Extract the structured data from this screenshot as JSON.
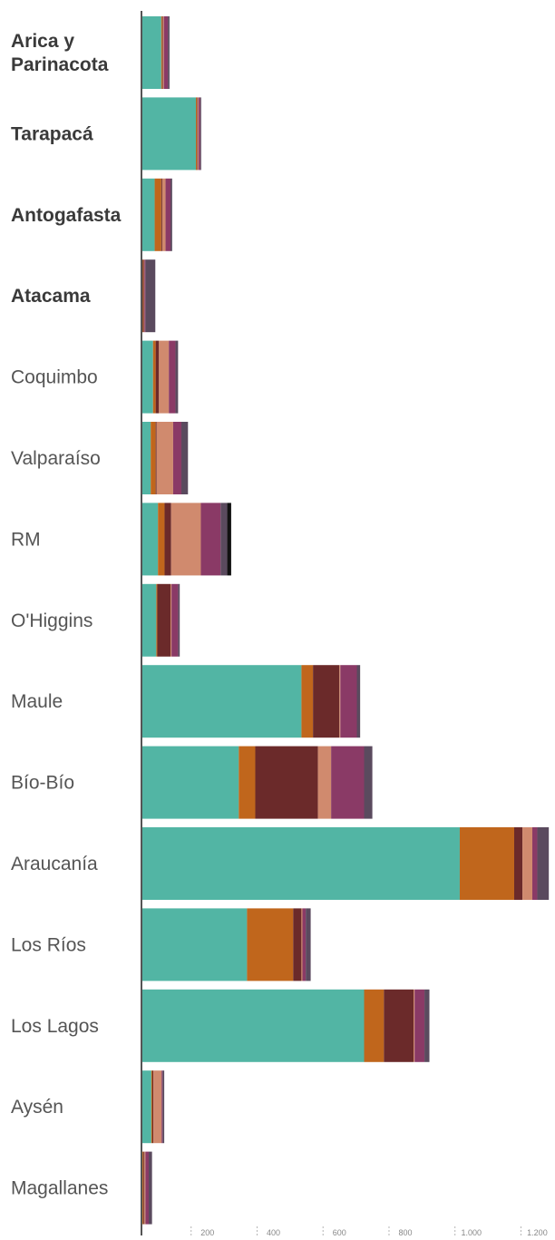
{
  "chart_data": {
    "type": "bar",
    "orientation": "horizontal",
    "stacked": true,
    "categories": [
      {
        "label": "Arica y\nParinacota",
        "bold": true
      },
      {
        "label": "Tarapacá",
        "bold": true
      },
      {
        "label": "Antogafasta",
        "bold": true
      },
      {
        "label": "Atacama",
        "bold": true
      },
      {
        "label": "Coquimbo",
        "bold": false
      },
      {
        "label": "Valparaíso",
        "bold": false
      },
      {
        "label": "RM",
        "bold": false
      },
      {
        "label": "O'Higgins",
        "bold": false
      },
      {
        "label": "Maule",
        "bold": false
      },
      {
        "label": "Bío-Bío",
        "bold": false
      },
      {
        "label": "Araucanía",
        "bold": false
      },
      {
        "label": "Los Ríos",
        "bold": false
      },
      {
        "label": "Los Lagos",
        "bold": false
      },
      {
        "label": "Aysén",
        "bold": false
      },
      {
        "label": "Magallanes",
        "bold": false
      }
    ],
    "series": [
      {
        "color": "#52b5a4",
        "values": [
          60,
          165,
          40,
          2,
          35,
          28,
          50,
          45,
          485,
          295,
          965,
          320,
          675,
          30,
          3
        ]
      },
      {
        "color": "#c0661c",
        "values": [
          3,
          3,
          20,
          2,
          8,
          15,
          20,
          3,
          35,
          50,
          165,
          140,
          60,
          3,
          3
        ]
      },
      {
        "color": "#6b2a2a",
        "values": [
          2,
          2,
          3,
          3,
          10,
          3,
          20,
          40,
          80,
          190,
          25,
          25,
          90,
          3,
          3
        ]
      },
      {
        "color": "#d08a6e",
        "values": [
          3,
          3,
          10,
          2,
          30,
          50,
          90,
          3,
          3,
          40,
          30,
          3,
          3,
          25,
          3
        ]
      },
      {
        "color": "#8a3a66",
        "values": [
          12,
          5,
          15,
          3,
          20,
          25,
          60,
          20,
          50,
          100,
          15,
          10,
          30,
          3,
          10
        ]
      },
      {
        "color": "#5a4a5e",
        "values": [
          5,
          3,
          5,
          30,
          8,
          20,
          20,
          5,
          10,
          25,
          35,
          15,
          15,
          5,
          10
        ]
      },
      {
        "color": "#111111",
        "values": [
          0,
          0,
          0,
          0,
          0,
          0,
          12,
          0,
          0,
          0,
          0,
          0,
          0,
          0,
          0
        ]
      }
    ],
    "xlim": [
      0,
      1240
    ],
    "x_ticks": [
      200,
      400,
      600,
      800,
      1000,
      1200
    ],
    "x_tick_labels": [
      "200",
      "400",
      "600",
      "800",
      "1.000",
      "1.200"
    ],
    "grid": false,
    "legend": "none"
  }
}
